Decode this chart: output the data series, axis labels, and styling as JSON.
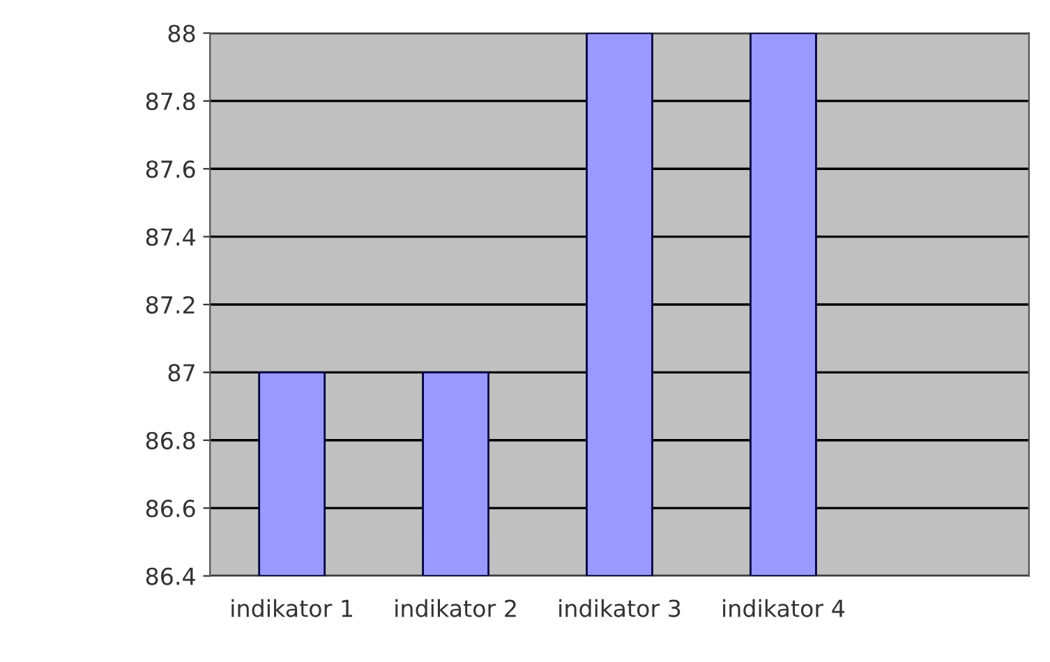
{
  "chart_data": {
    "type": "bar",
    "categories": [
      "indikator 1",
      "indikator 2",
      "indikator 3",
      "indikator 4",
      null
    ],
    "values": [
      87,
      87,
      88,
      88,
      null
    ],
    "color": "#9999ff",
    "ylim": [
      86.4,
      88
    ],
    "yticks": [
      86.4,
      86.6,
      86.8,
      87,
      87.2,
      87.4,
      87.6,
      87.8,
      88
    ],
    "grid": "y"
  }
}
